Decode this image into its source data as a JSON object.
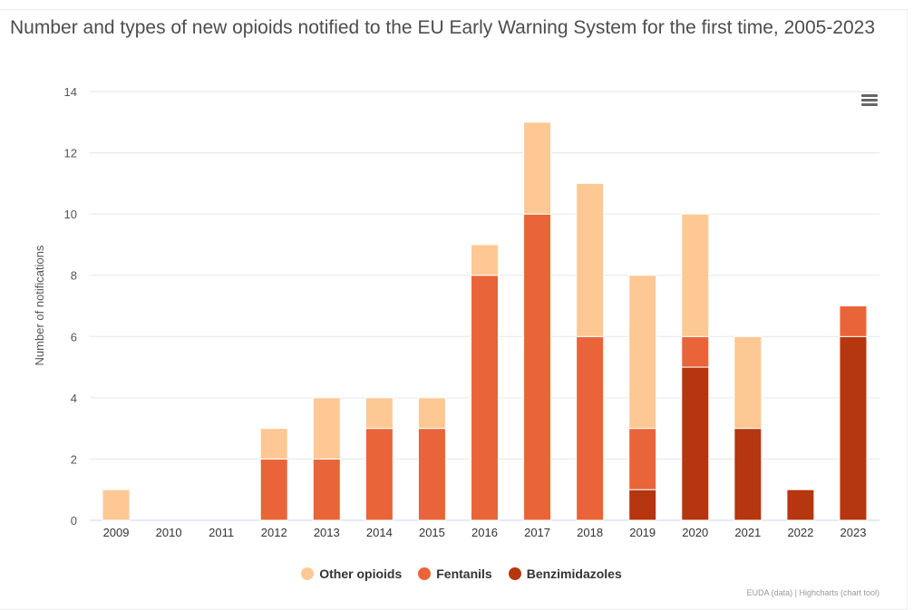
{
  "chart_data": {
    "type": "bar",
    "stacked": true,
    "title": "Number and types of new opioids notified to the EU Early Warning System for the first time, 2005-2023",
    "xlabel": "",
    "ylabel": "Number of notifications",
    "ylim": [
      0,
      14
    ],
    "yticks": [
      0,
      2,
      4,
      6,
      8,
      10,
      12,
      14
    ],
    "grid": true,
    "legend_position": "bottom",
    "categories": [
      "2009",
      "2010",
      "2011",
      "2012",
      "2013",
      "2014",
      "2015",
      "2016",
      "2017",
      "2018",
      "2019",
      "2020",
      "2021",
      "2022",
      "2023"
    ],
    "series": [
      {
        "name": "Benzimidazoles",
        "color": "#b5360f",
        "values": [
          0,
          0,
          0,
          0,
          0,
          0,
          0,
          0,
          0,
          0,
          1,
          5,
          3,
          1,
          6
        ]
      },
      {
        "name": "Fentanils",
        "color": "#ea6439",
        "values": [
          0,
          0,
          0,
          2,
          2,
          3,
          3,
          8,
          10,
          6,
          2,
          1,
          0,
          0,
          1
        ]
      },
      {
        "name": "Other opioids",
        "color": "#fdc894",
        "values": [
          1,
          0,
          0,
          1,
          2,
          1,
          1,
          1,
          3,
          5,
          5,
          4,
          3,
          0,
          0
        ]
      }
    ],
    "legend_order": [
      "Other opioids",
      "Fentanils",
      "Benzimidazoles"
    ]
  },
  "credits": "EUDA (data) | Highcharts (chart tool)",
  "menu_icon": "hamburger-menu-icon"
}
